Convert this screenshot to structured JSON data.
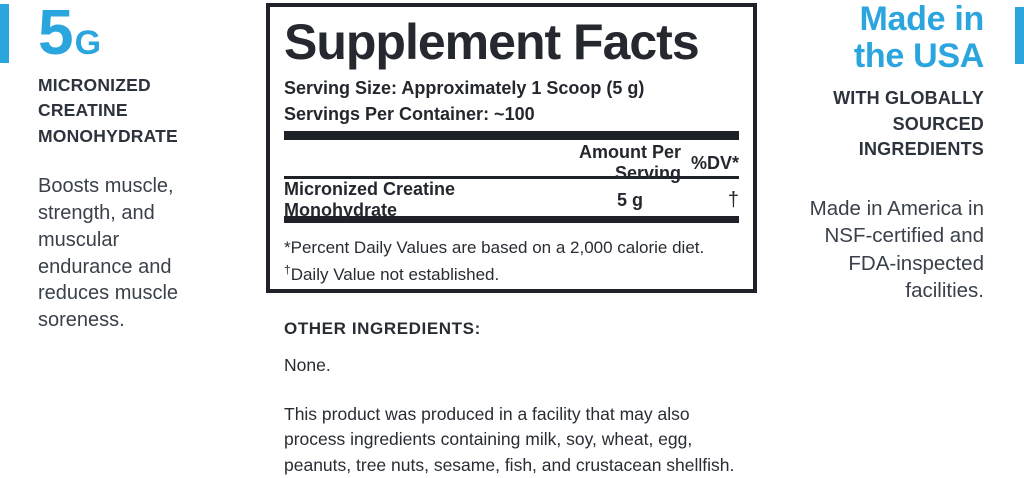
{
  "colors": {
    "accent_blue": "#2ba5de",
    "heading_dark": "#2d333c",
    "body_text": "#3a414b",
    "panel_ink": "#1e2228"
  },
  "left_column": {
    "dose_value": "5",
    "dose_unit": "G",
    "heading_lines": [
      "MICRONIZED",
      "CREATINE",
      "MONOHYDRATE"
    ],
    "description_lines": [
      "Boosts muscle,",
      "strength, and",
      "muscular",
      "endurance and",
      "reduces muscle",
      "soreness."
    ]
  },
  "facts_panel": {
    "title": "Supplement Facts",
    "serving_size": "Serving Size: Approximately 1 Scoop (5 g)",
    "servings_per_container": "Servings Per Container: ~100",
    "amount_header": "Amount Per Serving",
    "dv_header": "%DV*",
    "row": {
      "name": "Micronized Creatine Monohydrate",
      "amount": "5 g",
      "dv": "†"
    },
    "footnote_1": "*Percent Daily Values are based on a 2,000 calorie diet.",
    "footnote_2_mark": "†",
    "footnote_2_text": "Daily Value not established."
  },
  "other_ingredients": {
    "label": "OTHER INGREDIENTS:",
    "value": "None.",
    "allergen_lines": [
      "This product was produced in a facility that may also",
      "process ingredients containing milk, soy, wheat, egg,",
      "peanuts, tree nuts, sesame, fish, and crustacean shellfish."
    ]
  },
  "right_column": {
    "title_lines": [
      "Made in",
      "the USA"
    ],
    "subheading_lines": [
      "WITH GLOBALLY",
      "SOURCED",
      "INGREDIENTS"
    ],
    "description_lines": [
      "Made in America in",
      "NSF-certified and",
      "FDA-inspected",
      "facilities."
    ]
  }
}
